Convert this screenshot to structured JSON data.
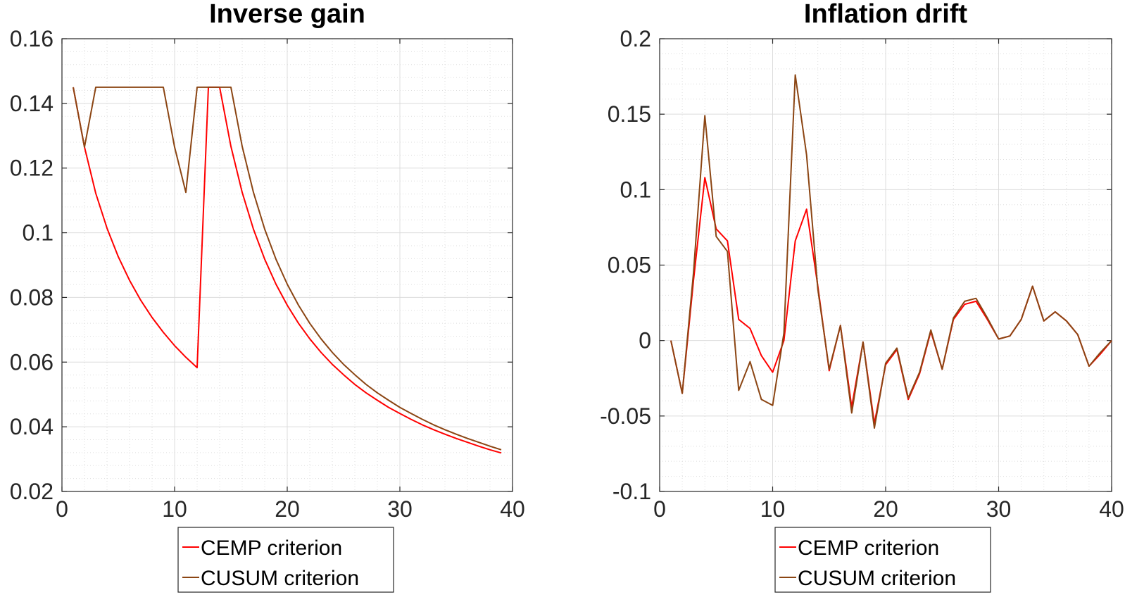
{
  "chart_data": [
    {
      "type": "line",
      "title": "Inverse gain",
      "xlabel": "",
      "ylabel": "",
      "xlim": [
        0,
        40
      ],
      "ylim": [
        0.02,
        0.16
      ],
      "xticks": [
        "0",
        "10",
        "20",
        "30",
        "40"
      ],
      "yticks": [
        "0.02",
        "0.04",
        "0.06",
        "0.08",
        "0.1",
        "0.12",
        "0.14",
        "0.16"
      ],
      "grid": true,
      "legend_position": "below",
      "x": [
        1,
        2,
        3,
        4,
        5,
        6,
        7,
        8,
        9,
        10,
        11,
        12,
        13,
        14,
        15,
        16,
        17,
        18,
        19,
        20,
        21,
        22,
        23,
        24,
        25,
        26,
        27,
        28,
        29,
        30,
        31,
        32,
        33,
        34,
        35,
        36,
        37,
        38,
        39
      ],
      "series": [
        {
          "name": "CEMP criterion",
          "color": "#ff0000",
          "values": [
            0.145,
            0.1265,
            0.1122,
            0.1014,
            0.0926,
            0.0853,
            0.0791,
            0.0738,
            0.0692,
            0.0651,
            0.0615,
            0.0583,
            0.145,
            0.145,
            0.1267,
            0.1125,
            0.1011,
            0.0918,
            0.0841,
            0.0776,
            0.072,
            0.0672,
            0.063,
            0.0593,
            0.0561,
            0.0531,
            0.0505,
            0.0482,
            0.046,
            0.0441,
            0.0423,
            0.0406,
            0.0391,
            0.0377,
            0.0364,
            0.0352,
            0.034,
            0.0329,
            0.0319
          ]
        },
        {
          "name": "CUSUM criterion",
          "color": "#8b4513",
          "values": [
            0.145,
            0.1265,
            0.145,
            0.145,
            0.145,
            0.145,
            0.145,
            0.145,
            0.145,
            0.1265,
            0.1125,
            0.145,
            0.145,
            0.145,
            0.145,
            0.1267,
            0.1125,
            0.1011,
            0.0918,
            0.0841,
            0.0776,
            0.072,
            0.0672,
            0.063,
            0.0593,
            0.0561,
            0.0531,
            0.0505,
            0.0482,
            0.046,
            0.0441,
            0.0423,
            0.0406,
            0.0391,
            0.0377,
            0.0364,
            0.0352,
            0.034,
            0.0329
          ]
        }
      ]
    },
    {
      "type": "line",
      "title": "Inflation drift",
      "xlabel": "",
      "ylabel": "",
      "xlim": [
        0,
        40
      ],
      "ylim": [
        -0.1,
        0.2
      ],
      "xticks": [
        "0",
        "10",
        "20",
        "30",
        "40"
      ],
      "yticks": [
        "-0.1",
        "-0.05",
        "0",
        "0.05",
        "0.1",
        "0.15",
        "0.2"
      ],
      "grid": true,
      "legend_position": "below",
      "x": [
        1,
        2,
        3,
        4,
        5,
        6,
        7,
        8,
        9,
        10,
        11,
        12,
        13,
        14,
        15,
        16,
        17,
        18,
        19,
        20,
        21,
        22,
        23,
        24,
        25,
        26,
        27,
        28,
        29,
        30,
        31,
        32,
        33,
        34,
        35,
        36,
        37,
        38,
        39,
        40
      ],
      "series": [
        {
          "name": "CEMP criterion",
          "color": "#ff0000",
          "values": [
            0,
            -0.035,
            0.04,
            0.108,
            0.074,
            0.066,
            0.014,
            0.008,
            -0.01,
            -0.021,
            0.0,
            0.066,
            0.087,
            0.036,
            -0.02,
            0.01,
            -0.044,
            -0.001,
            -0.055,
            -0.016,
            -0.006,
            -0.039,
            -0.022,
            0.006,
            -0.019,
            0.014,
            0.024,
            0.026,
            0.014,
            0.001,
            0.003,
            0.014,
            0.036,
            0.013,
            0.019,
            0.013,
            0.004,
            -0.017,
            -0.009,
            0.0
          ]
        },
        {
          "name": "CUSUM criterion",
          "color": "#8b4513",
          "values": [
            0,
            -0.035,
            0.045,
            0.149,
            0.069,
            0.059,
            -0.033,
            -0.014,
            -0.039,
            -0.043,
            0.005,
            0.176,
            0.123,
            0.034,
            -0.019,
            0.01,
            -0.048,
            -0.001,
            -0.058,
            -0.015,
            -0.005,
            -0.038,
            -0.021,
            0.007,
            -0.019,
            0.015,
            0.026,
            0.028,
            0.015,
            0.001,
            0.003,
            0.014,
            0.036,
            0.013,
            0.019,
            0.013,
            0.004,
            -0.017,
            -0.008,
            0.0
          ]
        }
      ]
    }
  ]
}
